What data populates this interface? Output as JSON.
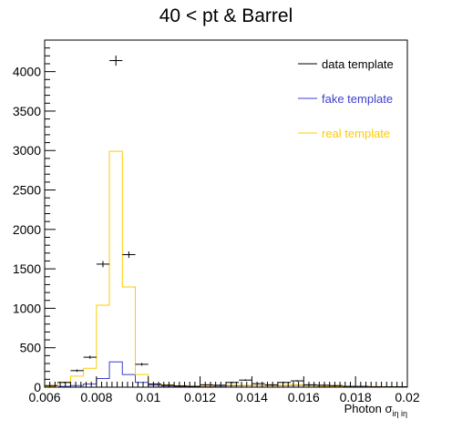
{
  "chart_data": {
    "type": "histogram",
    "title": "40 < pt & Barrel",
    "xlabel": {
      "main": "Photon σ",
      "subscript": "iη iη"
    },
    "ylabel": "",
    "xlim": [
      0.006,
      0.02
    ],
    "ylim": [
      0,
      4400
    ],
    "x_ticks": [
      0.006,
      0.008,
      0.01,
      0.012,
      0.014,
      0.016,
      0.018,
      0.02
    ],
    "x_tick_labels": [
      "0.006",
      "0.008",
      "0.01",
      "0.012",
      "0.014",
      "0.016",
      "0.018",
      "0.02"
    ],
    "y_ticks": [
      0,
      500,
      1000,
      1500,
      2000,
      2500,
      3000,
      3500,
      4000
    ],
    "y_tick_labels": [
      "0",
      "500",
      "1000",
      "1500",
      "2000",
      "2500",
      "3000",
      "3500",
      "4000"
    ],
    "bin_edges": [
      0.006,
      0.0065,
      0.007,
      0.0075,
      0.008,
      0.0085,
      0.009,
      0.0095,
      0.01,
      0.0105,
      0.011,
      0.0115,
      0.012,
      0.0125,
      0.013,
      0.0135,
      0.014,
      0.0145,
      0.015,
      0.0155,
      0.016,
      0.0165,
      0.017,
      0.0175,
      0.018,
      0.0185,
      0.019,
      0.0195,
      0.02
    ],
    "legend_position": "top-right",
    "series": [
      {
        "name": "data template",
        "color": "#000000",
        "style": "points",
        "values": [
          20,
          60,
          210,
          380,
          1560,
          4140,
          1680,
          290,
          40,
          25,
          15,
          10,
          30,
          25,
          60,
          90,
          45,
          30,
          60,
          80,
          30,
          25,
          20,
          10,
          10,
          5,
          5,
          5
        ]
      },
      {
        "name": "fake template",
        "color": "#3f3fcc",
        "style": "step",
        "values": [
          5,
          10,
          20,
          40,
          110,
          320,
          160,
          60,
          25,
          15,
          10,
          10,
          12,
          15,
          18,
          20,
          20,
          18,
          20,
          25,
          20,
          15,
          12,
          10,
          8,
          5,
          5,
          5
        ]
      },
      {
        "name": "real template",
        "color": "#ffcc00",
        "style": "step",
        "values": [
          10,
          60,
          140,
          240,
          1040,
          2990,
          1270,
          160,
          40,
          30,
          20,
          15,
          15,
          20,
          25,
          25,
          20,
          20,
          25,
          30,
          20,
          15,
          12,
          10,
          10,
          8,
          5,
          5
        ]
      }
    ]
  }
}
